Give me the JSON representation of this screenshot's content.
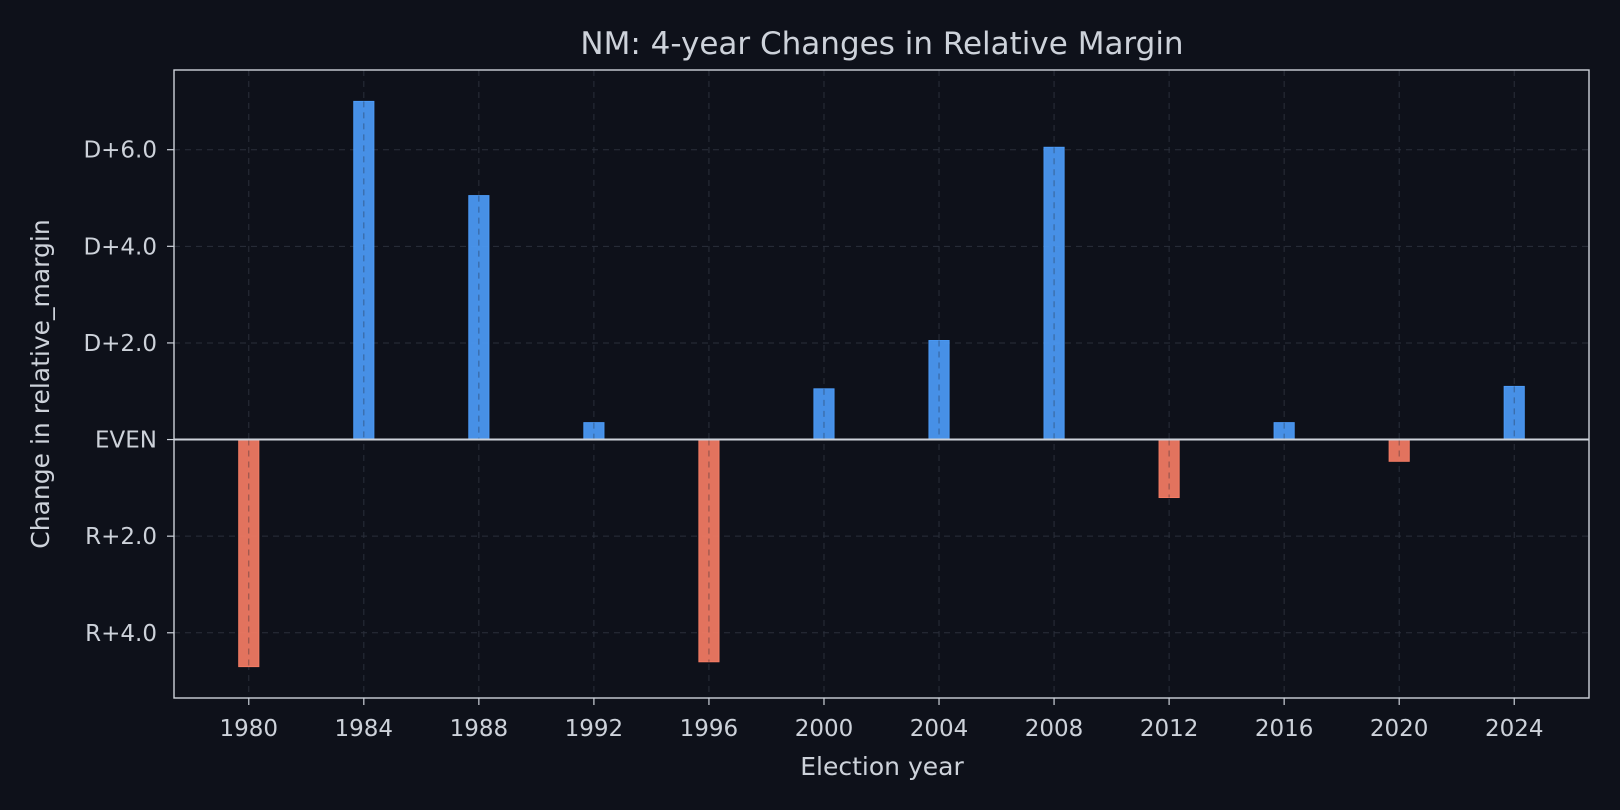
{
  "chart_data": {
    "type": "bar",
    "title": "NM: 4-year Changes in Relative Margin",
    "xlabel": "Election year",
    "ylabel": "Change in relative_margin",
    "categories": [
      "1980",
      "1984",
      "1988",
      "1992",
      "1996",
      "2000",
      "2004",
      "2008",
      "2012",
      "2016",
      "2020",
      "2024"
    ],
    "values": [
      -4.7,
      7.0,
      5.05,
      0.35,
      -4.6,
      1.05,
      2.05,
      6.05,
      -1.2,
      0.35,
      -0.45,
      1.1
    ],
    "x_ticks": [
      1980,
      1984,
      1988,
      1992,
      1996,
      2000,
      2004,
      2008,
      2012,
      2016,
      2020,
      2024
    ],
    "x_tick_labels": [
      "1980",
      "1984",
      "1988",
      "1992",
      "1996",
      "2000",
      "2004",
      "2008",
      "2012",
      "2016",
      "2020",
      "2024"
    ],
    "y_ticks": [
      6,
      4,
      2,
      0,
      -2,
      -4
    ],
    "y_tick_labels": [
      "D+6.0",
      "D+4.0",
      "D+2.0",
      "EVEN",
      "R+2.0",
      "R+4.0"
    ],
    "xlim": [
      1977.4,
      2026.6
    ],
    "ylim": [
      -5.35,
      7.65
    ],
    "grid": true,
    "colors": {
      "background": "#0e111a",
      "plot_background": "#0e111a",
      "positive": "#4c9bf7",
      "negative": "#f47c64",
      "axis": "#cdd2da",
      "text": "#cdd2da",
      "grid": "#2a2f3a",
      "zero_line": "#cdd2da"
    }
  }
}
